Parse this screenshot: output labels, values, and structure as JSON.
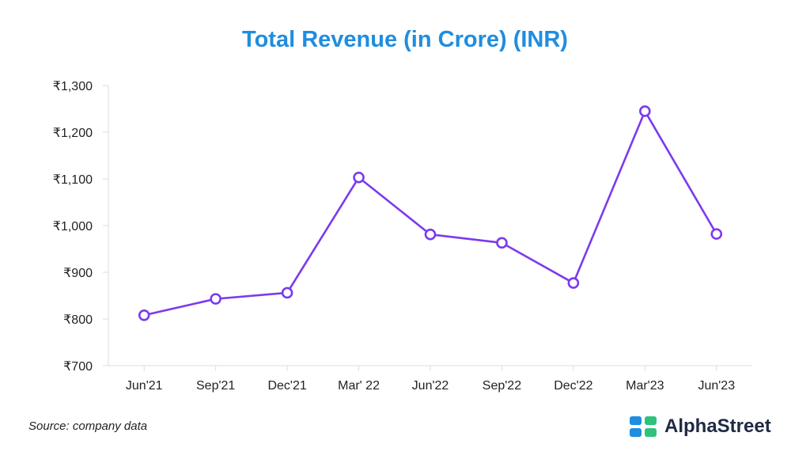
{
  "chart_data": {
    "type": "line",
    "title": "Total Revenue (in Crore) (INR)",
    "categories": [
      "Jun'21",
      "Sep'21",
      "Dec'21",
      "Mar' 22",
      "Jun'22",
      "Sep'22",
      "Dec'22",
      "Mar'23",
      "Jun'23"
    ],
    "series": [
      {
        "name": "Total Revenue",
        "values": [
          808,
          843,
          856,
          1103,
          981,
          963,
          877,
          1245,
          982
        ]
      }
    ],
    "ylim": [
      700,
      1300
    ],
    "yticks": [
      700,
      800,
      900,
      1000,
      1100,
      1200,
      1300
    ],
    "ytick_labels": [
      "₹700",
      "₹800",
      "₹900",
      "₹1,000",
      "₹1,100",
      "₹1,200",
      "₹1,300"
    ],
    "xlabel": "",
    "ylabel": "",
    "grid": false,
    "line_color": "#7c3aed"
  },
  "footer": {
    "source": "Source: company data",
    "brand": "AlphaStreet",
    "brand_colors": [
      "#1f8de0",
      "#2ec27e"
    ]
  }
}
